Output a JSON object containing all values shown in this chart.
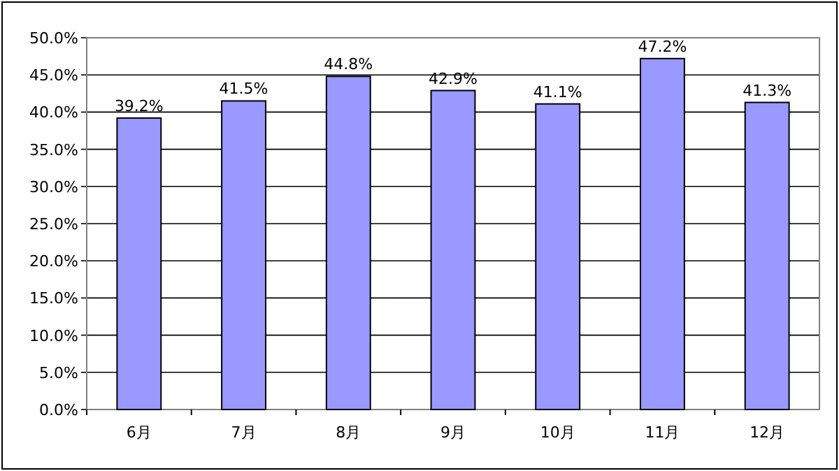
{
  "chart_data": {
    "type": "bar",
    "categories": [
      "6月",
      "7月",
      "8月",
      "9月",
      "10月",
      "11月",
      "12月"
    ],
    "values": [
      39.2,
      41.5,
      44.8,
      42.9,
      41.1,
      47.2,
      41.3
    ],
    "value_labels": [
      "39.2%",
      "41.5%",
      "44.8%",
      "42.9%",
      "41.1%",
      "47.2%",
      "41.3%"
    ],
    "color": "#9999ff",
    "ylim": [
      0,
      50
    ],
    "yticks": [
      {
        "value": 0,
        "label": "0.0%"
      },
      {
        "value": 5,
        "label": "5.0%"
      },
      {
        "value": 10,
        "label": "10.0%"
      },
      {
        "value": 15,
        "label": "15.0%"
      },
      {
        "value": 20,
        "label": "20.0%"
      },
      {
        "value": 25,
        "label": "25.0%"
      },
      {
        "value": 30,
        "label": "30.0%"
      },
      {
        "value": 35,
        "label": "35.0%"
      },
      {
        "value": 40,
        "label": "40.0%"
      },
      {
        "value": 45,
        "label": "45.0%"
      },
      {
        "value": 50,
        "label": "50.0%"
      }
    ],
    "grid": "y"
  }
}
